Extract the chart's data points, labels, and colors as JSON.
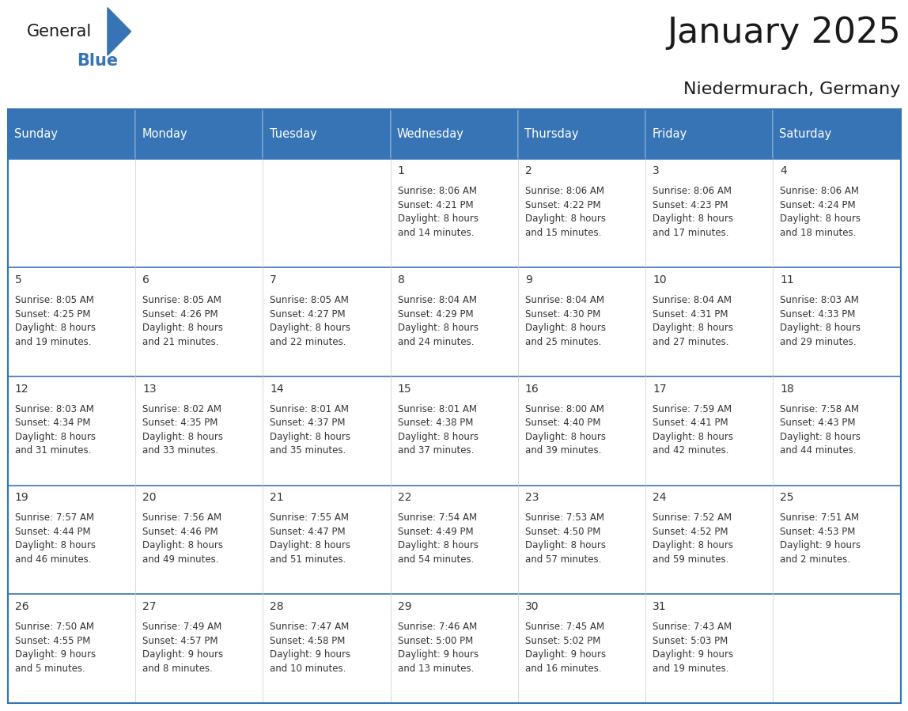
{
  "title": "January 2025",
  "subtitle": "Niedermurach, Germany",
  "header_bg": "#3674B5",
  "header_text_color": "#ffffff",
  "cell_bg_even": "#ffffff",
  "cell_bg_odd": "#f0f4f8",
  "border_color": "#3674B5",
  "text_color": "#333333",
  "day_names": [
    "Sunday",
    "Monday",
    "Tuesday",
    "Wednesday",
    "Thursday",
    "Friday",
    "Saturday"
  ],
  "days_data": [
    {
      "day": 1,
      "col": 3,
      "row": 0,
      "sunrise": "8:06 AM",
      "sunset": "4:21 PM",
      "daylight_h": "8 hours",
      "daylight_m": "and 14 minutes."
    },
    {
      "day": 2,
      "col": 4,
      "row": 0,
      "sunrise": "8:06 AM",
      "sunset": "4:22 PM",
      "daylight_h": "8 hours",
      "daylight_m": "and 15 minutes."
    },
    {
      "day": 3,
      "col": 5,
      "row": 0,
      "sunrise": "8:06 AM",
      "sunset": "4:23 PM",
      "daylight_h": "8 hours",
      "daylight_m": "and 17 minutes."
    },
    {
      "day": 4,
      "col": 6,
      "row": 0,
      "sunrise": "8:06 AM",
      "sunset": "4:24 PM",
      "daylight_h": "8 hours",
      "daylight_m": "and 18 minutes."
    },
    {
      "day": 5,
      "col": 0,
      "row": 1,
      "sunrise": "8:05 AM",
      "sunset": "4:25 PM",
      "daylight_h": "8 hours",
      "daylight_m": "and 19 minutes."
    },
    {
      "day": 6,
      "col": 1,
      "row": 1,
      "sunrise": "8:05 AM",
      "sunset": "4:26 PM",
      "daylight_h": "8 hours",
      "daylight_m": "and 21 minutes."
    },
    {
      "day": 7,
      "col": 2,
      "row": 1,
      "sunrise": "8:05 AM",
      "sunset": "4:27 PM",
      "daylight_h": "8 hours",
      "daylight_m": "and 22 minutes."
    },
    {
      "day": 8,
      "col": 3,
      "row": 1,
      "sunrise": "8:04 AM",
      "sunset": "4:29 PM",
      "daylight_h": "8 hours",
      "daylight_m": "and 24 minutes."
    },
    {
      "day": 9,
      "col": 4,
      "row": 1,
      "sunrise": "8:04 AM",
      "sunset": "4:30 PM",
      "daylight_h": "8 hours",
      "daylight_m": "and 25 minutes."
    },
    {
      "day": 10,
      "col": 5,
      "row": 1,
      "sunrise": "8:04 AM",
      "sunset": "4:31 PM",
      "daylight_h": "8 hours",
      "daylight_m": "and 27 minutes."
    },
    {
      "day": 11,
      "col": 6,
      "row": 1,
      "sunrise": "8:03 AM",
      "sunset": "4:33 PM",
      "daylight_h": "8 hours",
      "daylight_m": "and 29 minutes."
    },
    {
      "day": 12,
      "col": 0,
      "row": 2,
      "sunrise": "8:03 AM",
      "sunset": "4:34 PM",
      "daylight_h": "8 hours",
      "daylight_m": "and 31 minutes."
    },
    {
      "day": 13,
      "col": 1,
      "row": 2,
      "sunrise": "8:02 AM",
      "sunset": "4:35 PM",
      "daylight_h": "8 hours",
      "daylight_m": "and 33 minutes."
    },
    {
      "day": 14,
      "col": 2,
      "row": 2,
      "sunrise": "8:01 AM",
      "sunset": "4:37 PM",
      "daylight_h": "8 hours",
      "daylight_m": "and 35 minutes."
    },
    {
      "day": 15,
      "col": 3,
      "row": 2,
      "sunrise": "8:01 AM",
      "sunset": "4:38 PM",
      "daylight_h": "8 hours",
      "daylight_m": "and 37 minutes."
    },
    {
      "day": 16,
      "col": 4,
      "row": 2,
      "sunrise": "8:00 AM",
      "sunset": "4:40 PM",
      "daylight_h": "8 hours",
      "daylight_m": "and 39 minutes."
    },
    {
      "day": 17,
      "col": 5,
      "row": 2,
      "sunrise": "7:59 AM",
      "sunset": "4:41 PM",
      "daylight_h": "8 hours",
      "daylight_m": "and 42 minutes."
    },
    {
      "day": 18,
      "col": 6,
      "row": 2,
      "sunrise": "7:58 AM",
      "sunset": "4:43 PM",
      "daylight_h": "8 hours",
      "daylight_m": "and 44 minutes."
    },
    {
      "day": 19,
      "col": 0,
      "row": 3,
      "sunrise": "7:57 AM",
      "sunset": "4:44 PM",
      "daylight_h": "8 hours",
      "daylight_m": "and 46 minutes."
    },
    {
      "day": 20,
      "col": 1,
      "row": 3,
      "sunrise": "7:56 AM",
      "sunset": "4:46 PM",
      "daylight_h": "8 hours",
      "daylight_m": "and 49 minutes."
    },
    {
      "day": 21,
      "col": 2,
      "row": 3,
      "sunrise": "7:55 AM",
      "sunset": "4:47 PM",
      "daylight_h": "8 hours",
      "daylight_m": "and 51 minutes."
    },
    {
      "day": 22,
      "col": 3,
      "row": 3,
      "sunrise": "7:54 AM",
      "sunset": "4:49 PM",
      "daylight_h": "8 hours",
      "daylight_m": "and 54 minutes."
    },
    {
      "day": 23,
      "col": 4,
      "row": 3,
      "sunrise": "7:53 AM",
      "sunset": "4:50 PM",
      "daylight_h": "8 hours",
      "daylight_m": "and 57 minutes."
    },
    {
      "day": 24,
      "col": 5,
      "row": 3,
      "sunrise": "7:52 AM",
      "sunset": "4:52 PM",
      "daylight_h": "8 hours",
      "daylight_m": "and 59 minutes."
    },
    {
      "day": 25,
      "col": 6,
      "row": 3,
      "sunrise": "7:51 AM",
      "sunset": "4:53 PM",
      "daylight_h": "9 hours",
      "daylight_m": "and 2 minutes."
    },
    {
      "day": 26,
      "col": 0,
      "row": 4,
      "sunrise": "7:50 AM",
      "sunset": "4:55 PM",
      "daylight_h": "9 hours",
      "daylight_m": "and 5 minutes."
    },
    {
      "day": 27,
      "col": 1,
      "row": 4,
      "sunrise": "7:49 AM",
      "sunset": "4:57 PM",
      "daylight_h": "9 hours",
      "daylight_m": "and 8 minutes."
    },
    {
      "day": 28,
      "col": 2,
      "row": 4,
      "sunrise": "7:47 AM",
      "sunset": "4:58 PM",
      "daylight_h": "9 hours",
      "daylight_m": "and 10 minutes."
    },
    {
      "day": 29,
      "col": 3,
      "row": 4,
      "sunrise": "7:46 AM",
      "sunset": "5:00 PM",
      "daylight_h": "9 hours",
      "daylight_m": "and 13 minutes."
    },
    {
      "day": 30,
      "col": 4,
      "row": 4,
      "sunrise": "7:45 AM",
      "sunset": "5:02 PM",
      "daylight_h": "9 hours",
      "daylight_m": "and 16 minutes."
    },
    {
      "day": 31,
      "col": 5,
      "row": 4,
      "sunrise": "7:43 AM",
      "sunset": "5:03 PM",
      "daylight_h": "9 hours",
      "daylight_m": "and 19 minutes."
    }
  ],
  "logo_color_general": "#1a1a1a",
  "logo_color_blue": "#3674B5",
  "logo_triangle_color": "#3674B5",
  "title_fontsize": 32,
  "subtitle_fontsize": 16,
  "header_fontsize": 10.5,
  "day_num_fontsize": 10,
  "info_fontsize": 8.5
}
